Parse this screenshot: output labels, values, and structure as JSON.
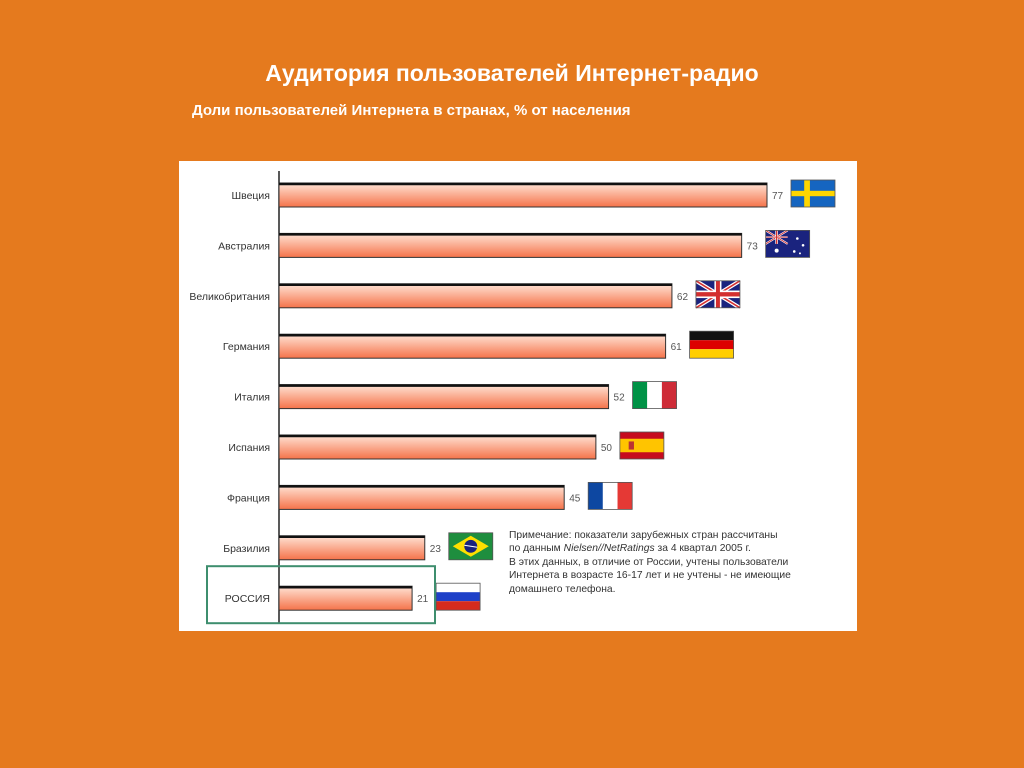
{
  "title": "Аудитория пользователей Интернет-радио",
  "subtitle": "Доли пользователей Интернета в странах, % от населения",
  "colors": {
    "background": "#E57A1E",
    "bar_gradient_top": "#FFE4D6",
    "bar_gradient_bottom": "#F5734A",
    "highlight_box": "#3E8E6E"
  },
  "chart_data": {
    "type": "bar",
    "orientation": "horizontal",
    "categories": [
      "Швеция",
      "Австралия",
      "Великобритания",
      "Германия",
      "Италия",
      "Испания",
      "Франция",
      "Бразилия",
      "РОССИЯ"
    ],
    "values": [
      77,
      73,
      62,
      61,
      52,
      50,
      45,
      23,
      21
    ],
    "flags": [
      "sweden-flag",
      "australia-flag",
      "uk-flag",
      "germany-flag",
      "italy-flag",
      "spain-flag",
      "france-flag",
      "brazil-flag",
      "russia-flag"
    ],
    "highlighted_category": "РОССИЯ",
    "xlim": [
      0,
      77
    ]
  },
  "note": {
    "lines": [
      "Примечание: показатели зарубежных стран рассчитаны",
      "по данным",
      "Nielsen//NetRatings",
      "за 4 квартал 2005 г.",
      "В этих данных, в отличие от России, учтены пользователи",
      "Интернета в возрасте 16-17 лет и не учтены - не имеющие",
      "домашнего телефона."
    ]
  }
}
